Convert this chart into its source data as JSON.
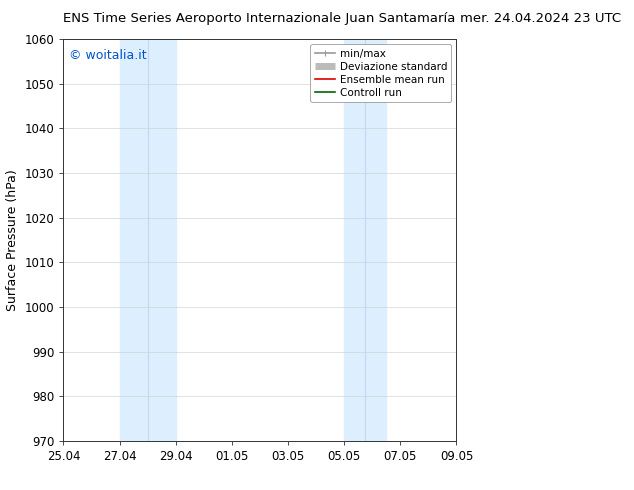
{
  "title_left": "ENS Time Series Aeroporto Internazionale Juan Santamaría",
  "title_right": "mer. 24.04.2024 23 UTC",
  "ylabel": "Surface Pressure (hPa)",
  "ylim": [
    970,
    1060
  ],
  "yticks": [
    970,
    980,
    990,
    1000,
    1010,
    1020,
    1030,
    1040,
    1050,
    1060
  ],
  "xtick_labels": [
    "25.04",
    "27.04",
    "29.04",
    "01.05",
    "03.05",
    "05.05",
    "07.05",
    "09.05"
  ],
  "xtick_positions": [
    0,
    2,
    4,
    6,
    8,
    10,
    12,
    14
  ],
  "xlim": [
    0,
    14
  ],
  "shaded_bands": [
    {
      "x_start": 2.0,
      "x_end": 2.5,
      "color": "#ddeeff"
    },
    {
      "x_start": 2.5,
      "x_end": 4.0,
      "color": "#ddeeff"
    },
    {
      "x_start": 10.0,
      "x_end": 10.5,
      "color": "#ddeeff"
    },
    {
      "x_start": 10.5,
      "x_end": 11.5,
      "color": "#ddeeff"
    }
  ],
  "watermark_text": "© woitalia.it",
  "watermark_color": "#0055cc",
  "background_color": "#ffffff",
  "legend_items": [
    {
      "label": "min/max",
      "color": "#999999",
      "lw": 1.2
    },
    {
      "label": "Deviazione standard",
      "color": "#bbbbbb",
      "lw": 5
    },
    {
      "label": "Ensemble mean run",
      "color": "#dd0000",
      "lw": 1.2
    },
    {
      "label": "Controll run",
      "color": "#006600",
      "lw": 1.2
    }
  ],
  "tick_fontsize": 8.5,
  "label_fontsize": 9,
  "title_fontsize": 9.5,
  "figsize": [
    6.34,
    4.9
  ],
  "dpi": 100
}
